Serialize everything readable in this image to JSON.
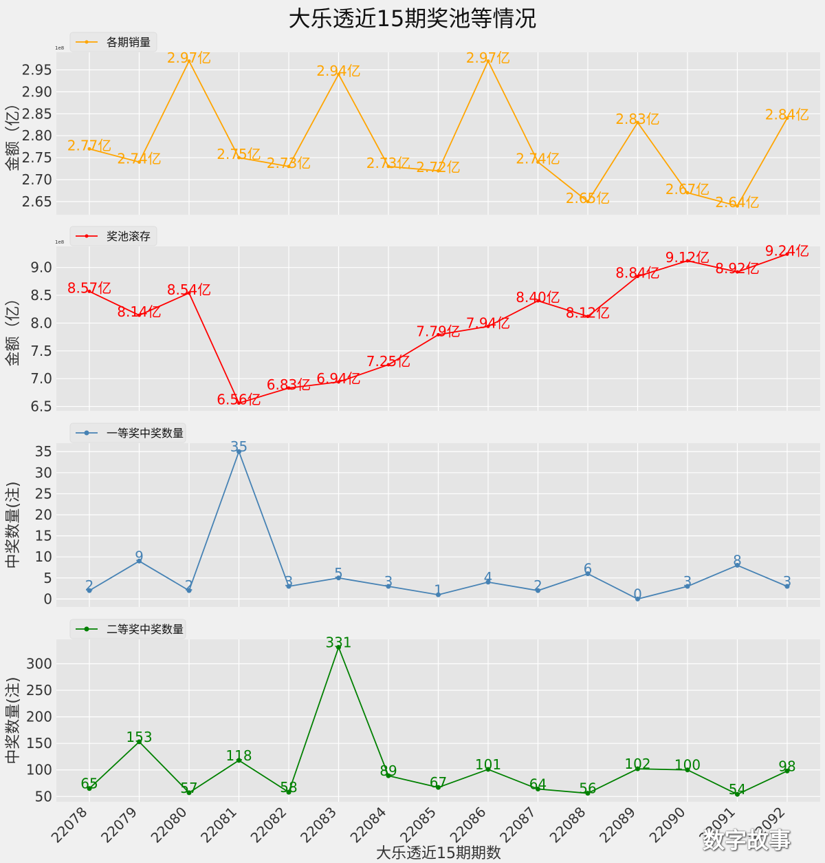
{
  "title": "大乐透近15期奖池等情况",
  "xlabel": "大乐透近15期期数",
  "watermark": "数字故事",
  "chart_data": [
    {
      "type": "line",
      "name": "各期销量",
      "color": "#ffa500",
      "ylabel": "金额（亿）",
      "offset_label": "1e8",
      "yticks": [
        "2.65",
        "2.70",
        "2.75",
        "2.80",
        "2.85",
        "2.90",
        "2.95"
      ],
      "ylim": [
        2.62,
        2.99
      ],
      "categories": [
        "22078",
        "22079",
        "22080",
        "22081",
        "22082",
        "22083",
        "22084",
        "22085",
        "22086",
        "22087",
        "22088",
        "22089",
        "22090",
        "22091",
        "22092"
      ],
      "values": [
        2.77,
        2.74,
        2.97,
        2.75,
        2.73,
        2.94,
        2.73,
        2.72,
        2.97,
        2.74,
        2.65,
        2.83,
        2.67,
        2.64,
        2.84
      ],
      "labels": [
        "2.77亿",
        "2.74亿",
        "2.97亿",
        "2.75亿",
        "2.73亿",
        "2.94亿",
        "2.73亿",
        "2.72亿",
        "2.97亿",
        "2.74亿",
        "2.65亿",
        "2.83亿",
        "2.67亿",
        "2.64亿",
        "2.84亿"
      ]
    },
    {
      "type": "line",
      "name": "奖池滚存",
      "color": "#ff0000",
      "ylabel": "金额（亿）",
      "offset_label": "1e8",
      "yticks": [
        "6.5",
        "7.0",
        "7.5",
        "8.0",
        "8.5",
        "9.0"
      ],
      "ylim": [
        6.42,
        9.38
      ],
      "categories": [
        "22078",
        "22079",
        "22080",
        "22081",
        "22082",
        "22083",
        "22084",
        "22085",
        "22086",
        "22087",
        "22088",
        "22089",
        "22090",
        "22091",
        "22092"
      ],
      "values": [
        8.57,
        8.14,
        8.54,
        6.56,
        6.83,
        6.94,
        7.25,
        7.79,
        7.94,
        8.4,
        8.12,
        8.84,
        9.12,
        8.92,
        9.24
      ],
      "labels": [
        "8.57亿",
        "8.14亿",
        "8.54亿",
        "6.56亿",
        "6.83亿",
        "6.94亿",
        "7.25亿",
        "7.79亿",
        "7.94亿",
        "8.40亿",
        "8.12亿",
        "8.84亿",
        "9.12亿",
        "8.92亿",
        "9.24亿"
      ]
    },
    {
      "type": "line",
      "name": "一等奖中奖数量",
      "color": "#4682b4",
      "ylabel": "中奖数量(注)",
      "yticks": [
        "0",
        "5",
        "10",
        "15",
        "20",
        "25",
        "30",
        "35"
      ],
      "ylim": [
        -1.9,
        37
      ],
      "categories": [
        "22078",
        "22079",
        "22080",
        "22081",
        "22082",
        "22083",
        "22084",
        "22085",
        "22086",
        "22087",
        "22088",
        "22089",
        "22090",
        "22091",
        "22092"
      ],
      "values": [
        2,
        9,
        2,
        35,
        3,
        5,
        3,
        1,
        4,
        2,
        6,
        0,
        3,
        8,
        3
      ],
      "labels": [
        "2",
        "9",
        "2",
        "35",
        "3",
        "5",
        "3",
        "1",
        "4",
        "2",
        "6",
        "0",
        "3",
        "8",
        "3"
      ]
    },
    {
      "type": "line",
      "name": "二等奖中奖数量",
      "color": "#008000",
      "ylabel": "中奖数量(注)",
      "yticks": [
        "50",
        "100",
        "150",
        "200",
        "250",
        "300"
      ],
      "ylim": [
        40,
        346
      ],
      "categories": [
        "22078",
        "22079",
        "22080",
        "22081",
        "22082",
        "22083",
        "22084",
        "22085",
        "22086",
        "22087",
        "22088",
        "22089",
        "22090",
        "22091",
        "22092"
      ],
      "values": [
        65,
        153,
        57,
        118,
        58,
        331,
        89,
        67,
        101,
        64,
        56,
        102,
        100,
        54,
        98
      ],
      "labels": [
        "65",
        "153",
        "57",
        "118",
        "58",
        "331",
        "89",
        "67",
        "101",
        "64",
        "56",
        "102",
        "100",
        "54",
        "98"
      ]
    }
  ]
}
